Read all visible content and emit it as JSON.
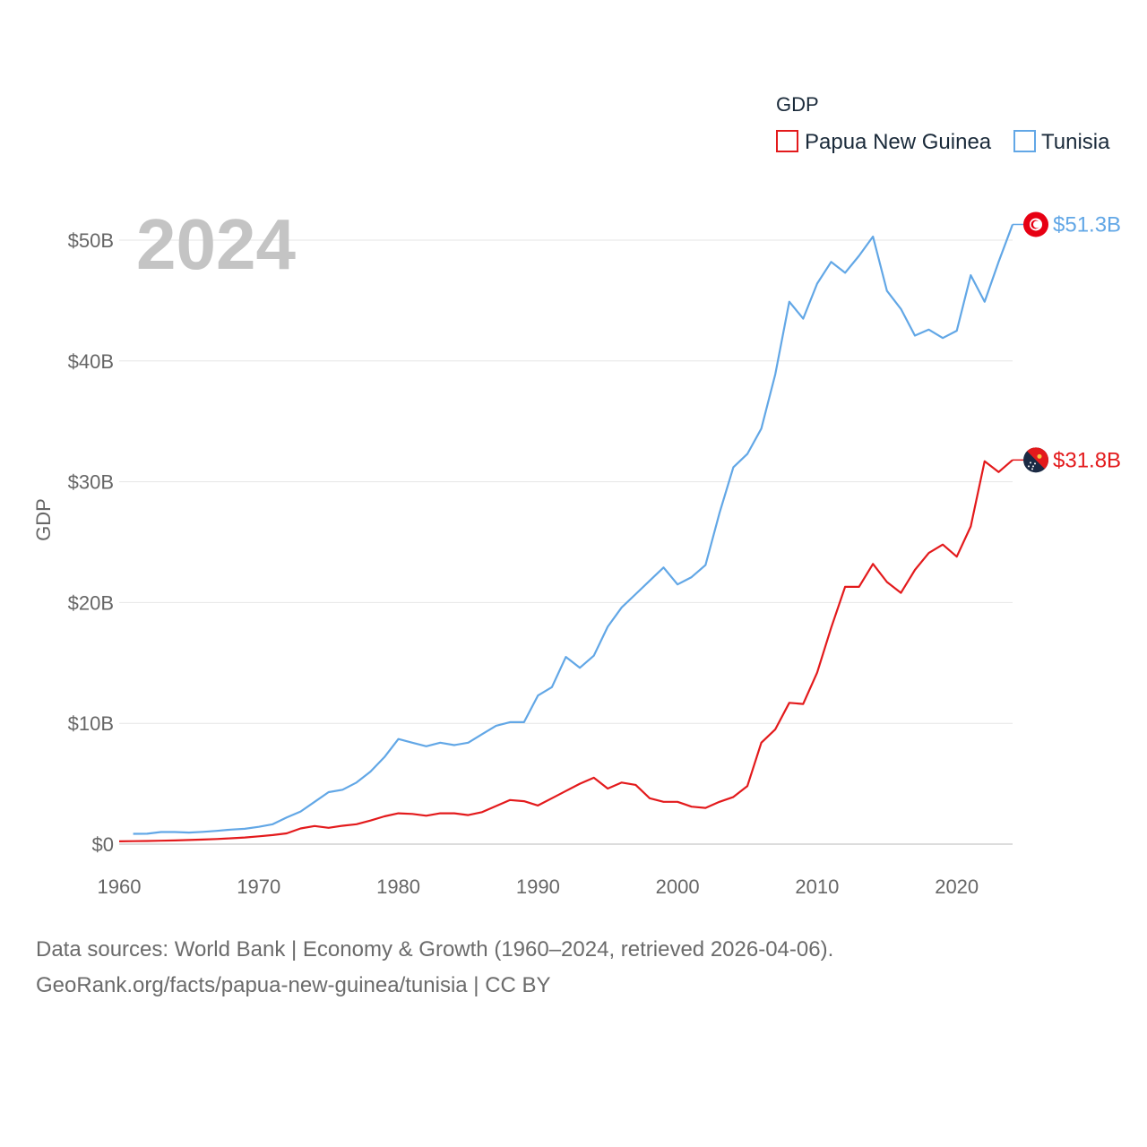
{
  "chart_data": {
    "type": "line",
    "title": "GDP",
    "year_label": "2024",
    "ylabel": "GDP",
    "xlabel": "",
    "xlim": [
      1960,
      2024
    ],
    "ylim": [
      0,
      50000000000
    ],
    "x_ticks": [
      1960,
      1970,
      1980,
      1990,
      2000,
      2010,
      2020
    ],
    "x_tick_labels": [
      "1960",
      "1970",
      "1980",
      "1990",
      "2000",
      "2010",
      "2020"
    ],
    "y_ticks": [
      0,
      10000000000,
      20000000000,
      30000000000,
      40000000000,
      50000000000
    ],
    "y_tick_labels": [
      "$0",
      "$10B",
      "$20B",
      "$30B",
      "$40B",
      "$50B"
    ],
    "legend": {
      "title": "GDP",
      "placement": "top-right"
    },
    "series": [
      {
        "name": "Papua New Guinea",
        "color": "#e31a1c",
        "flag_colors": [
          "#1b2a44",
          "#e31a1c"
        ],
        "end_label": "$31.8B",
        "x": [
          1960,
          1961,
          1962,
          1963,
          1964,
          1965,
          1966,
          1967,
          1968,
          1969,
          1970,
          1971,
          1972,
          1973,
          1974,
          1975,
          1976,
          1977,
          1978,
          1979,
          1980,
          1981,
          1982,
          1983,
          1984,
          1985,
          1986,
          1987,
          1988,
          1989,
          1990,
          1991,
          1992,
          1993,
          1994,
          1995,
          1996,
          1997,
          1998,
          1999,
          2000,
          2001,
          2002,
          2003,
          2004,
          2005,
          2006,
          2007,
          2008,
          2009,
          2010,
          2011,
          2012,
          2013,
          2014,
          2015,
          2016,
          2017,
          2018,
          2019,
          2020,
          2021,
          2022,
          2023,
          2024
        ],
        "values": [
          230000000,
          245000000,
          260000000,
          280000000,
          305000000,
          340000000,
          375000000,
          420000000,
          480000000,
          550000000,
          646000000,
          750000000,
          890000000,
          1300000000,
          1500000000,
          1350000000,
          1520000000,
          1650000000,
          1950000000,
          2300000000,
          2550000000,
          2500000000,
          2350000000,
          2550000000,
          2550000000,
          2400000000,
          2650000000,
          3150000000,
          3650000000,
          3550000000,
          3200000000,
          3800000000,
          4400000000,
          5000000000,
          5500000000,
          4600000000,
          5100000000,
          4900000000,
          3800000000,
          3500000000,
          3500000000,
          3100000000,
          3000000000,
          3500000000,
          3900000000,
          4800000000,
          8400000000,
          9500000000,
          11700000000,
          11600000000,
          14200000000,
          17900000000,
          21300000000,
          21300000000,
          23200000000,
          21700000000,
          20800000000,
          22700000000,
          24100000000,
          24800000000,
          23800000000,
          26300000000,
          31700000000,
          30800000000,
          31800000000
        ]
      },
      {
        "name": "Tunisia",
        "color": "#62a7e6",
        "flag_colors": [
          "#e70013",
          "#ffffff"
        ],
        "end_label": "$51.3B",
        "x": [
          1961,
          1962,
          1963,
          1964,
          1965,
          1966,
          1967,
          1968,
          1969,
          1970,
          1971,
          1972,
          1973,
          1974,
          1975,
          1976,
          1977,
          1978,
          1979,
          1980,
          1981,
          1982,
          1983,
          1984,
          1985,
          1986,
          1987,
          1988,
          1989,
          1990,
          1991,
          1992,
          1993,
          1994,
          1995,
          1996,
          1997,
          1998,
          1999,
          2000,
          2001,
          2002,
          2003,
          2004,
          2005,
          2006,
          2007,
          2008,
          2009,
          2010,
          2011,
          2012,
          2013,
          2014,
          2015,
          2016,
          2017,
          2018,
          2019,
          2020,
          2021,
          2022,
          2023,
          2024
        ],
        "values": [
          850000000,
          860000000,
          1000000000,
          1000000000,
          960000000,
          1020000000,
          1100000000,
          1200000000,
          1270000000,
          1430000000,
          1650000000,
          2200000000,
          2700000000,
          3500000000,
          4300000000,
          4500000000,
          5100000000,
          6000000000,
          7200000000,
          8700000000,
          8400000000,
          8100000000,
          8400000000,
          8200000000,
          8400000000,
          9100000000,
          9800000000,
          10100000000,
          10100000000,
          12300000000,
          13000000000,
          15500000000,
          14600000000,
          15600000000,
          18000000000,
          19600000000,
          20700000000,
          21800000000,
          22900000000,
          21500000000,
          22100000000,
          23100000000,
          27400000000,
          31200000000,
          32300000000,
          34400000000,
          38900000000,
          44900000000,
          43500000000,
          46400000000,
          48200000000,
          47300000000,
          48700000000,
          50300000000,
          45800000000,
          44300000000,
          42100000000,
          42600000000,
          41900000000,
          42500000000,
          47100000000,
          44900000000,
          48200000000,
          51300000000
        ]
      }
    ]
  },
  "footer": {
    "line1": "Data sources: World Bank | Economy & Growth (1960–2024, retrieved 2026-04-06).",
    "line2": "GeoRank.org/facts/papua-new-guinea/tunisia | CC BY"
  }
}
